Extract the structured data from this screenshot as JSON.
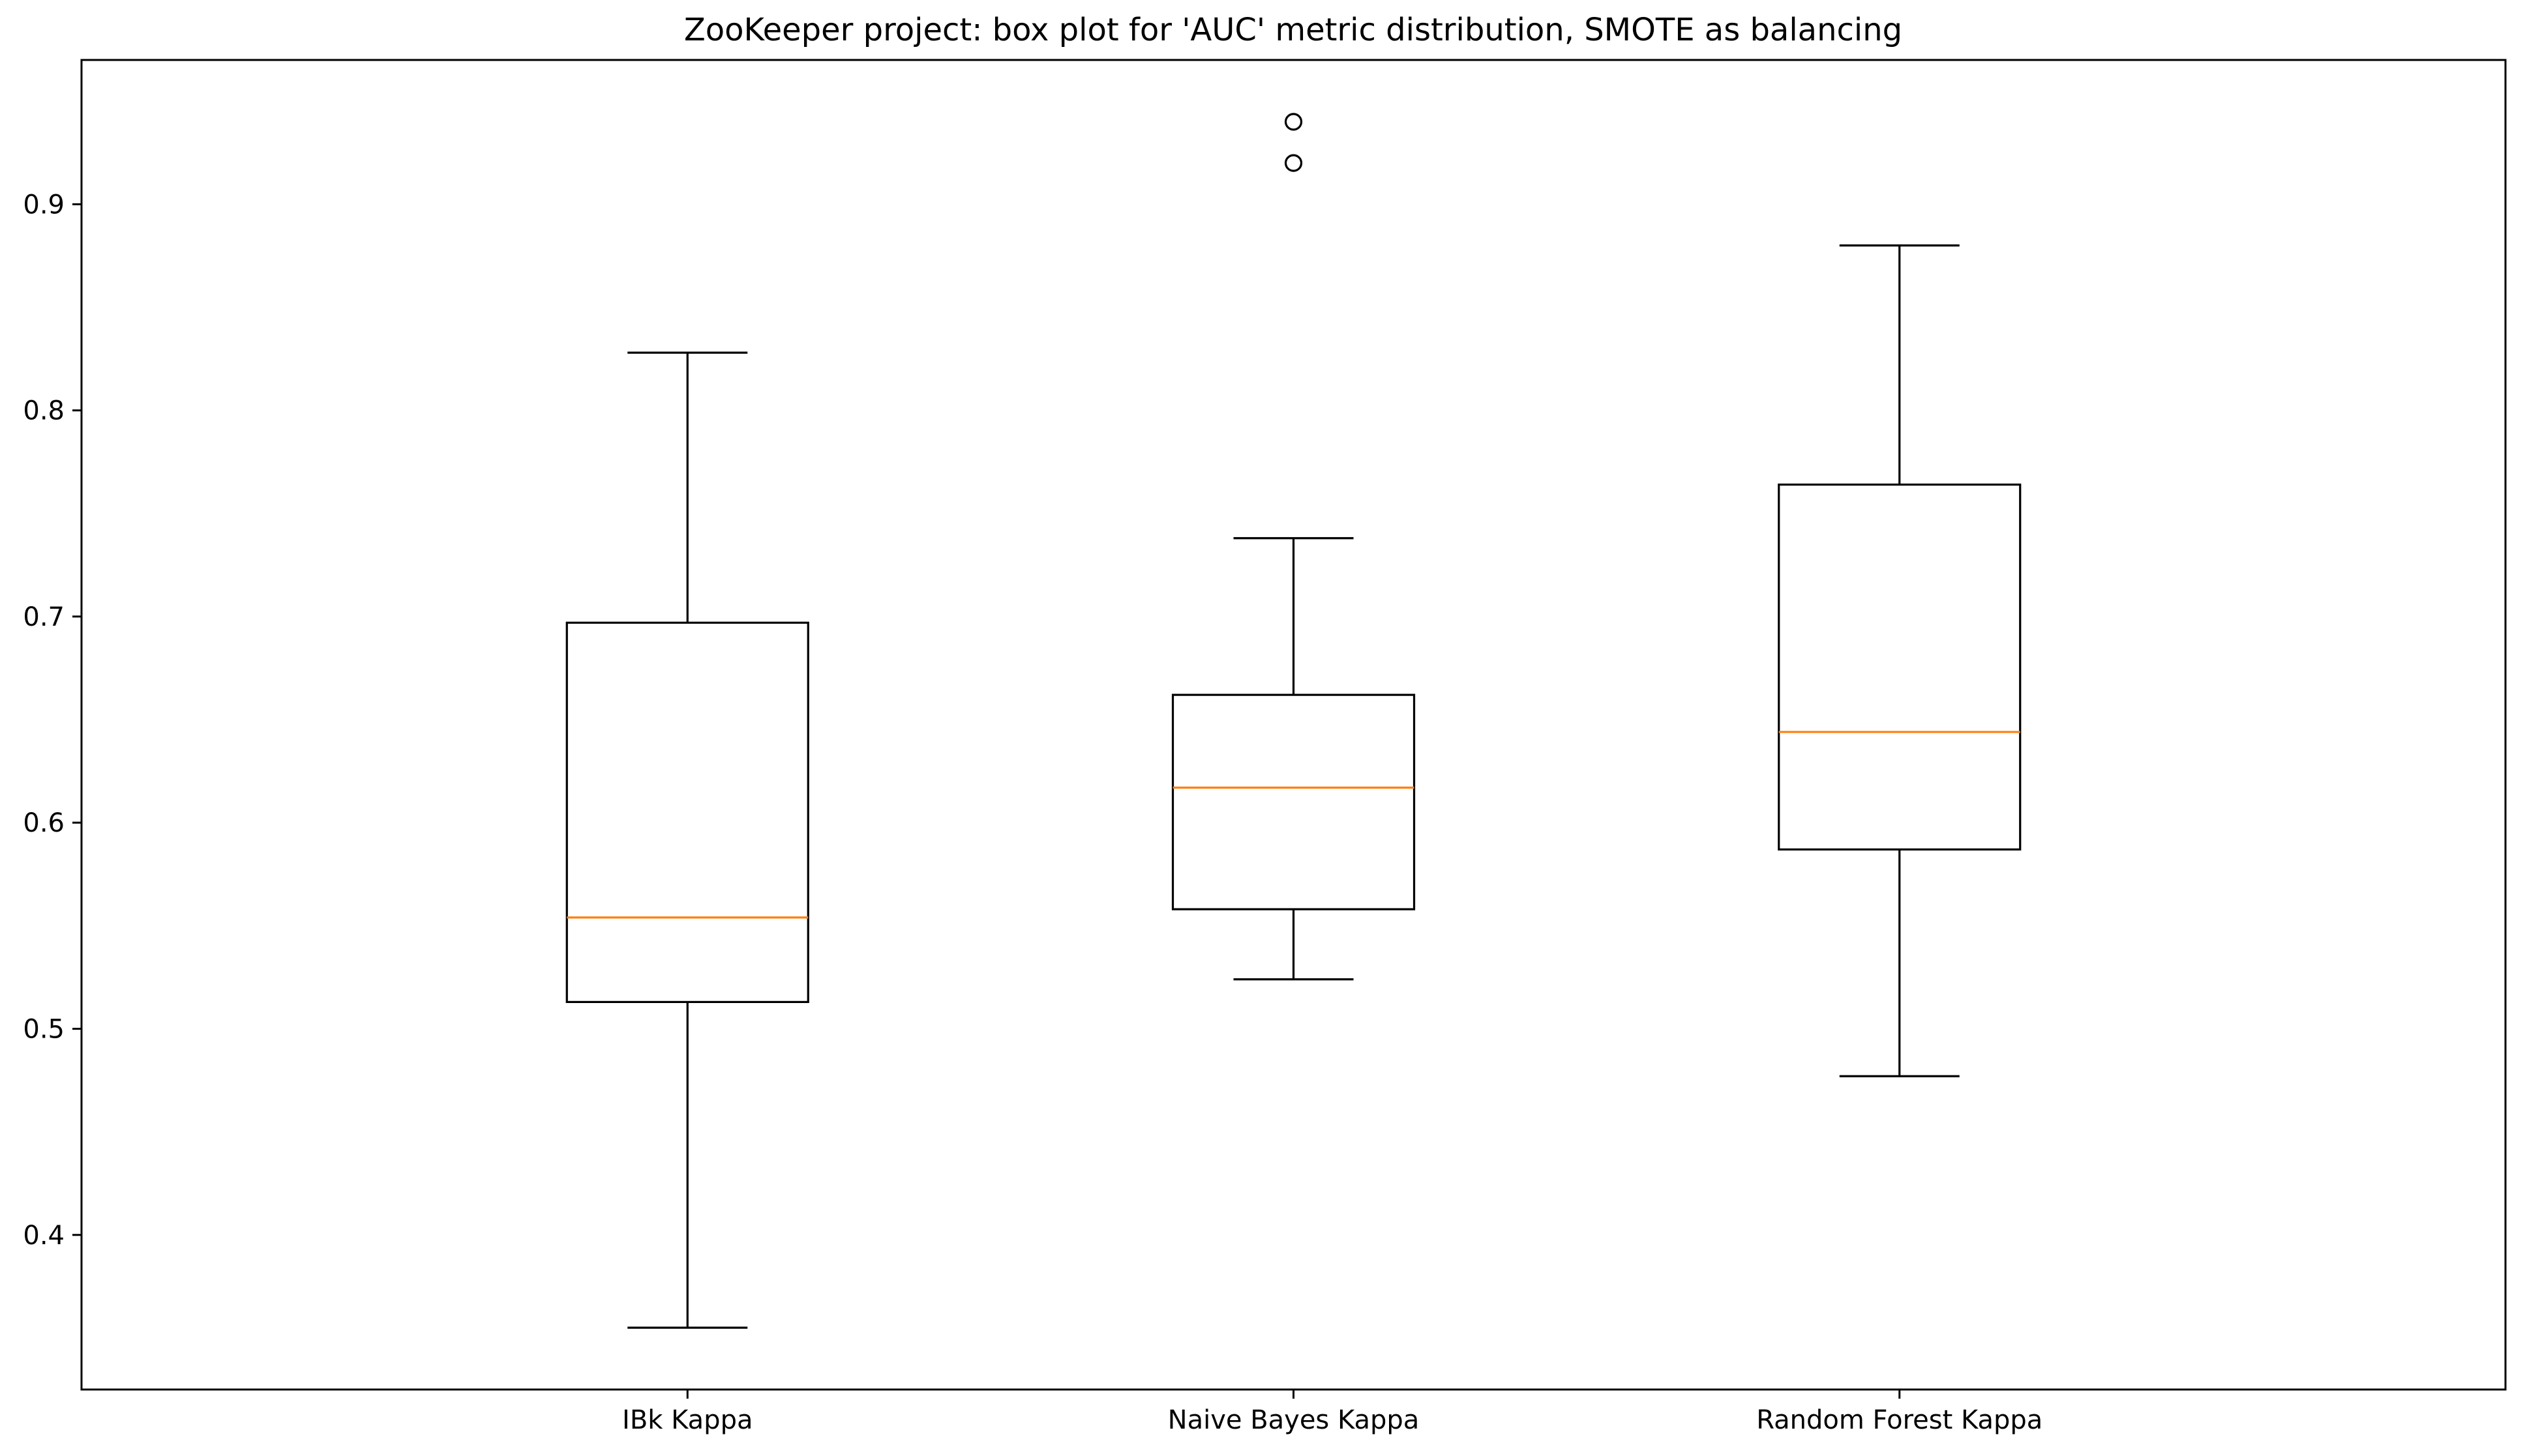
{
  "chart_data": {
    "type": "boxplot",
    "title": "ZooKeeper project: box plot for 'AUC' metric distribution, SMOTE as balancing",
    "xlabel": "",
    "ylabel": "",
    "ylim": [
      0.325,
      0.97
    ],
    "yticks": [
      0.4,
      0.5,
      0.6,
      0.7,
      0.8,
      0.9
    ],
    "ytick_labels": [
      "0.4",
      "0.5",
      "0.6",
      "0.7",
      "0.8",
      "0.9"
    ],
    "categories": [
      "IBk Kappa",
      "Naive Bayes Kappa",
      "Random Forest Kappa"
    ],
    "boxes": [
      {
        "label": "IBk Kappa",
        "whisker_low": 0.355,
        "q1": 0.513,
        "median": 0.554,
        "q3": 0.697,
        "whisker_high": 0.828,
        "outliers": []
      },
      {
        "label": "Naive Bayes Kappa",
        "whisker_low": 0.524,
        "q1": 0.558,
        "median": 0.617,
        "q3": 0.662,
        "whisker_high": 0.738,
        "outliers": [
          0.92,
          0.94
        ]
      },
      {
        "label": "Random Forest Kappa",
        "whisker_low": 0.477,
        "q1": 0.587,
        "median": 0.644,
        "q3": 0.764,
        "whisker_high": 0.88,
        "outliers": []
      }
    ],
    "colors": {
      "box": "#000000",
      "median": "#ff7f0e",
      "outlier_edge": "#000000",
      "background": "#ffffff"
    },
    "grid": false,
    "legend": "none"
  }
}
